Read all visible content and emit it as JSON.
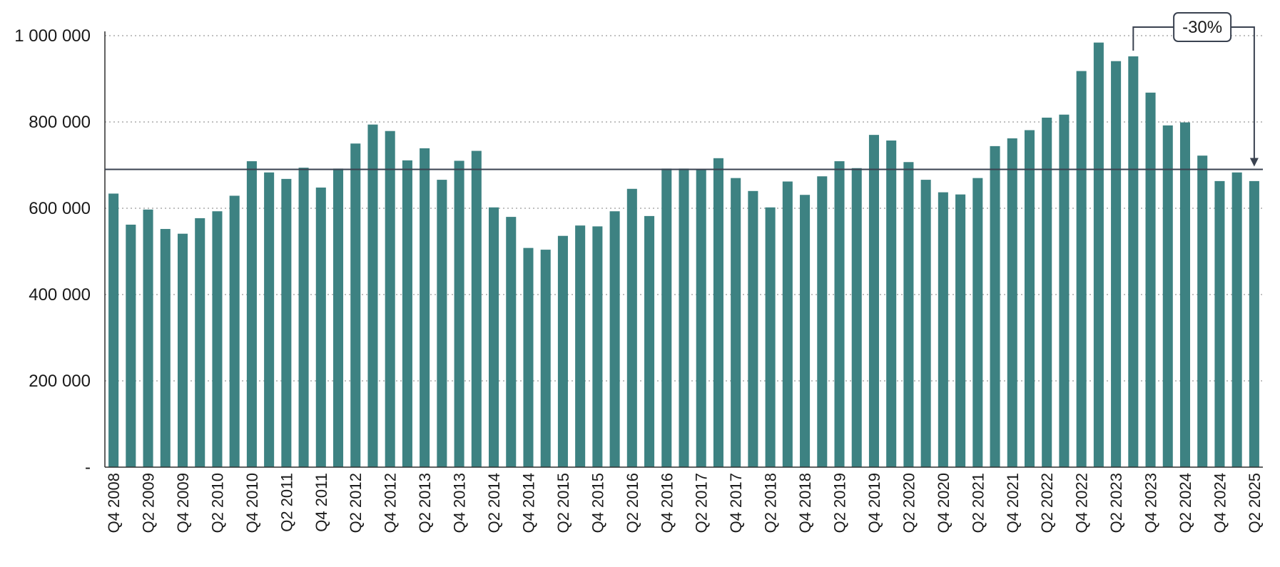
{
  "chart_data": {
    "type": "bar",
    "title": "",
    "xlabel": "",
    "ylabel": "",
    "ylim": [
      0,
      1000000
    ],
    "yticks": [
      {
        "value": 0,
        "label": "-"
      },
      {
        "value": 200000,
        "label": "200 000"
      },
      {
        "value": 400000,
        "label": "400 000"
      },
      {
        "value": 600000,
        "label": "600 000"
      },
      {
        "value": 800000,
        "label": "800 000"
      },
      {
        "value": 1000000,
        "label": "1 000 000"
      }
    ],
    "grid": true,
    "bar_color": "#3d8282",
    "line_color": "#3a4250",
    "tick_labels": [
      "Q4 2008",
      "Q2 2009",
      "Q4 2009",
      "Q2 2010",
      "Q4 2010",
      "Q2 2011",
      "Q4 2011",
      "Q2 2012",
      "Q4 2012",
      "Q2 2013",
      "Q4 2013",
      "Q2 2014",
      "Q4 2014",
      "Q2 2015",
      "Q4 2015",
      "Q2 2016",
      "Q4 2016",
      "Q2 2017",
      "Q4 2017",
      "Q2 2018",
      "Q4 2018",
      "Q2 2019",
      "Q4 2019",
      "Q2 2020",
      "Q4 2020",
      "Q2 2021",
      "Q4 2021",
      "Q2 2022",
      "Q4 2022",
      "Q2 2023",
      "Q4 2023",
      "Q2 2024",
      "Q4 2024",
      "Q2 2025"
    ],
    "categories": [
      "Q4 2008",
      "Q1 2009",
      "Q2 2009",
      "Q3 2009",
      "Q4 2009",
      "Q1 2010",
      "Q2 2010",
      "Q3 2010",
      "Q4 2010",
      "Q1 2011",
      "Q2 2011",
      "Q3 2011",
      "Q4 2011",
      "Q1 2012",
      "Q2 2012",
      "Q3 2012",
      "Q4 2012",
      "Q1 2013",
      "Q2 2013",
      "Q3 2013",
      "Q4 2013",
      "Q1 2014",
      "Q2 2014",
      "Q3 2014",
      "Q4 2014",
      "Q1 2015",
      "Q2 2015",
      "Q3 2015",
      "Q4 2015",
      "Q1 2016",
      "Q2 2016",
      "Q3 2016",
      "Q4 2016",
      "Q1 2017",
      "Q2 2017",
      "Q3 2017",
      "Q4 2017",
      "Q1 2018",
      "Q2 2018",
      "Q3 2018",
      "Q4 2018",
      "Q1 2019",
      "Q2 2019",
      "Q3 2019",
      "Q4 2019",
      "Q1 2020",
      "Q2 2020",
      "Q3 2020",
      "Q4 2020",
      "Q1 2021",
      "Q2 2021",
      "Q3 2021",
      "Q4 2021",
      "Q1 2022",
      "Q2 2022",
      "Q3 2022",
      "Q4 2022",
      "Q1 2023",
      "Q2 2023",
      "Q3 2023",
      "Q4 2023",
      "Q1 2024",
      "Q2 2024",
      "Q3 2024",
      "Q4 2024",
      "Q1 2025",
      "Q2 2025"
    ],
    "values": [
      634000,
      562000,
      597000,
      552000,
      541000,
      577000,
      593000,
      629000,
      709000,
      683000,
      668000,
      694000,
      648000,
      692000,
      750000,
      794000,
      779000,
      711000,
      739000,
      666000,
      710000,
      733000,
      602000,
      580000,
      508000,
      504000,
      536000,
      560000,
      558000,
      593000,
      645000,
      582000,
      692000,
      692000,
      690000,
      716000,
      670000,
      640000,
      602000,
      662000,
      631000,
      674000,
      709000,
      693000,
      770000,
      757000,
      707000,
      666000,
      637000,
      632000,
      670000,
      744000,
      762000,
      781000,
      810000,
      817000,
      918000,
      984000,
      941000,
      952000,
      868000,
      792000,
      799000,
      722000,
      663000,
      683000,
      663000
    ],
    "reference_line": {
      "value": 690000
    },
    "annotation": {
      "label": "-30%",
      "from_category": "Q3 2023",
      "to_category": "Q2 2025"
    }
  }
}
